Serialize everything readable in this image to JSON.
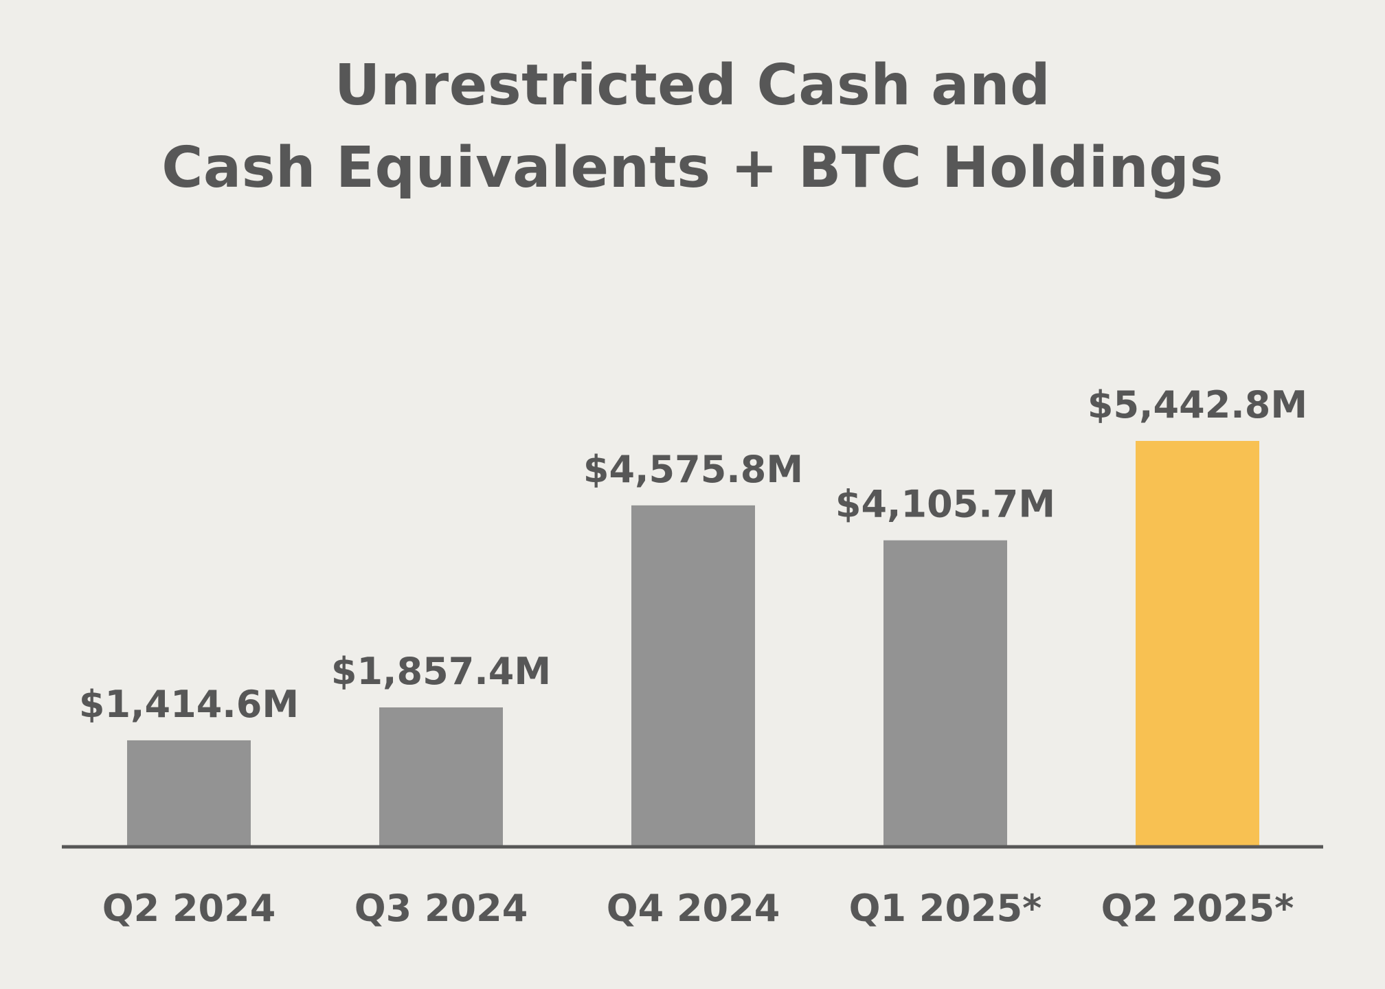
{
  "chart_data": {
    "type": "bar",
    "title_lines": [
      "Unrestricted Cash and",
      "Cash Equivalents +  BTC Holdings"
    ],
    "categories": [
      "Q2 2024",
      "Q3 2024",
      "Q4 2024",
      "Q1 2025*",
      "Q2 2025*"
    ],
    "values": [
      1414.6,
      1857.4,
      4575.8,
      4105.7,
      5442.8
    ],
    "value_labels": [
      "$1,414.6M",
      "$1,857.4M",
      "$4,575.8M",
      "$4,105.7M",
      "$5,442.8M"
    ],
    "unit": "$M",
    "xlabel": "",
    "ylabel": "",
    "ylim": [
      0,
      5442.8
    ],
    "grid": false,
    "legend": "none",
    "colors": {
      "bar": "#939393",
      "highlight": "#f8c152",
      "text": "#575757",
      "axis": "#575757",
      "background": "#efeeea"
    },
    "highlight_index": 4
  }
}
